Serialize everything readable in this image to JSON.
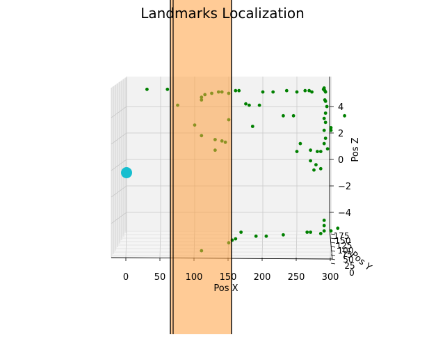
{
  "chart_data": {
    "type": "scatter",
    "projection": "3d",
    "title": "Landmarks Localization",
    "xlabel": "Pos X",
    "ylabel": "Pos Y",
    "zlabel": "Pos Z",
    "xlim": [
      -10,
      330
    ],
    "zlim": [
      -6,
      6
    ],
    "x_ticks": [
      "0",
      "50",
      "100",
      "150",
      "200",
      "250",
      "300"
    ],
    "y_ticks": [
      "0",
      "25",
      "50",
      "75",
      "100",
      "125",
      "150",
      "175"
    ],
    "z_ticks": [
      "4",
      "2",
      "0",
      "−2",
      "−4"
    ],
    "grid": true,
    "colors": {
      "landmarks": "#008000",
      "vehicle": "#17becf",
      "sensor_band": "#ffa040",
      "band_edge": "#000000"
    },
    "sensor_band": {
      "x_range": [
        70,
        170
      ]
    },
    "vehicle": {
      "x": 0,
      "z": -1
    },
    "landmarks": [
      [
        30,
        5.3
      ],
      [
        60,
        5.3
      ],
      [
        75,
        4.1
      ],
      [
        110,
        4.7
      ],
      [
        115,
        4.9
      ],
      [
        110,
        4.5
      ],
      [
        125,
        5.0
      ],
      [
        135,
        5.1
      ],
      [
        140,
        5.1
      ],
      [
        150,
        5.0
      ],
      [
        160,
        5.2
      ],
      [
        165,
        5.2
      ],
      [
        175,
        4.2
      ],
      [
        180,
        4.1
      ],
      [
        195,
        4.1
      ],
      [
        200,
        5.1
      ],
      [
        215,
        5.1
      ],
      [
        235,
        5.2
      ],
      [
        250,
        5.1
      ],
      [
        262,
        5.2
      ],
      [
        268,
        5.2
      ],
      [
        272,
        5.1
      ],
      [
        289,
        5.3
      ],
      [
        290,
        5.4
      ],
      [
        291,
        5.2
      ],
      [
        292,
        5.1
      ],
      [
        291,
        4.5
      ],
      [
        292,
        4.4
      ],
      [
        294,
        4.0
      ],
      [
        292,
        3.5
      ],
      [
        290,
        3.1
      ],
      [
        292,
        2.8
      ],
      [
        300,
        2.4
      ],
      [
        320,
        3.3
      ],
      [
        290,
        2.2
      ],
      [
        300,
        2.2
      ],
      [
        292,
        1.6
      ],
      [
        290,
        1.2
      ],
      [
        295,
        0.8
      ],
      [
        285,
        0.6
      ],
      [
        255,
        1.2
      ],
      [
        270,
        0.7
      ],
      [
        280,
        0.6
      ],
      [
        270,
        -0.1
      ],
      [
        278,
        -0.4
      ],
      [
        285,
        -0.7
      ],
      [
        275,
        -0.8
      ],
      [
        150,
        3.0
      ],
      [
        185,
        2.5
      ],
      [
        230,
        3.3
      ],
      [
        245,
        3.3
      ],
      [
        100,
        2.6
      ],
      [
        110,
        1.8
      ],
      [
        130,
        1.5
      ],
      [
        140,
        1.4
      ],
      [
        145,
        1.3
      ],
      [
        130,
        0.7
      ],
      [
        250,
        0.6
      ],
      [
        310,
        -5.2
      ],
      [
        300,
        -5.4
      ],
      [
        290,
        -4.6
      ],
      [
        290,
        -5.0
      ],
      [
        290,
        -5.4
      ],
      [
        285,
        -5.6
      ],
      [
        270,
        -5.5
      ],
      [
        265,
        -5.5
      ],
      [
        230,
        -5.7
      ],
      [
        205,
        -5.8
      ],
      [
        190,
        -5.8
      ],
      [
        168,
        -5.5
      ],
      [
        160,
        -6.0
      ],
      [
        155,
        -6.1
      ],
      [
        150,
        -6.3
      ],
      [
        110,
        -6.9
      ]
    ]
  }
}
